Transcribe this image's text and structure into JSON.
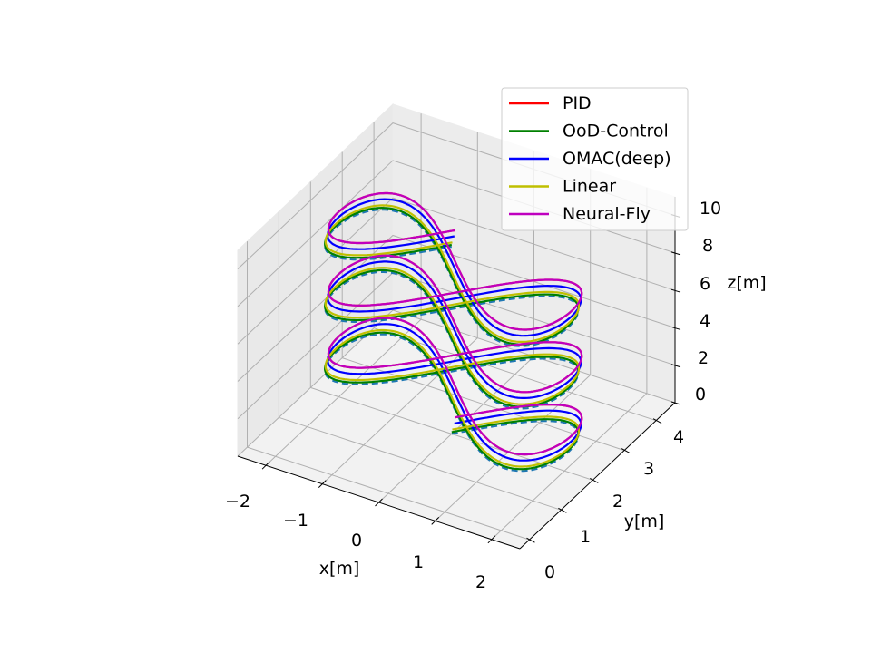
{
  "chart_data": {
    "type": "line",
    "projection": "3d",
    "xlabel": "x[m]",
    "ylabel": "y[m]",
    "zlabel": "z[m]",
    "xlim": [
      -2.5,
      2.5
    ],
    "ylim": [
      -0.3,
      4.6
    ],
    "zlim": [
      0,
      11
    ],
    "xticks": [
      -2,
      -1,
      0,
      1,
      2
    ],
    "xtick_labels": [
      "−2",
      "−1",
      "0",
      "1",
      "2"
    ],
    "yticks": [
      0,
      1,
      2,
      3,
      4
    ],
    "ytick_labels": [
      "0",
      "1",
      "2",
      "3",
      "4"
    ],
    "zticks": [
      0,
      2,
      4,
      6,
      8,
      10
    ],
    "ztick_labels": [
      "0",
      "2",
      "4",
      "6",
      "8",
      "10"
    ],
    "grid": true,
    "legend_position": "top-right",
    "trajectory": "figure-8 spiral: x = 2 sin(t), y = 2 + 2 sin(2t)/2, z rising 0 to 10 m over 3 loops",
    "series": [
      {
        "name": "reference",
        "color": "#1f77b4",
        "style": "dashed",
        "offset": [
          0,
          0,
          0
        ],
        "in_legend": false
      },
      {
        "name": "PID",
        "color": "#ff0000",
        "style": "solid",
        "offset": [
          0.05,
          0.02,
          0.9
        ],
        "in_legend": true
      },
      {
        "name": "OoD-Control",
        "color": "#008000",
        "style": "solid",
        "offset": [
          0.0,
          0.0,
          0.1
        ],
        "in_legend": true
      },
      {
        "name": "OMAC(deep)",
        "color": "#0000ff",
        "style": "solid",
        "offset": [
          0.02,
          0.05,
          0.5
        ],
        "in_legend": true
      },
      {
        "name": "Linear",
        "color": "#bfbf00",
        "style": "solid",
        "offset": [
          0.0,
          0.02,
          0.2
        ],
        "in_legend": true
      },
      {
        "name": "Neural-Fly",
        "color": "#bf00bf",
        "style": "solid",
        "offset": [
          0.05,
          0.02,
          0.9
        ],
        "in_legend": true
      }
    ]
  }
}
